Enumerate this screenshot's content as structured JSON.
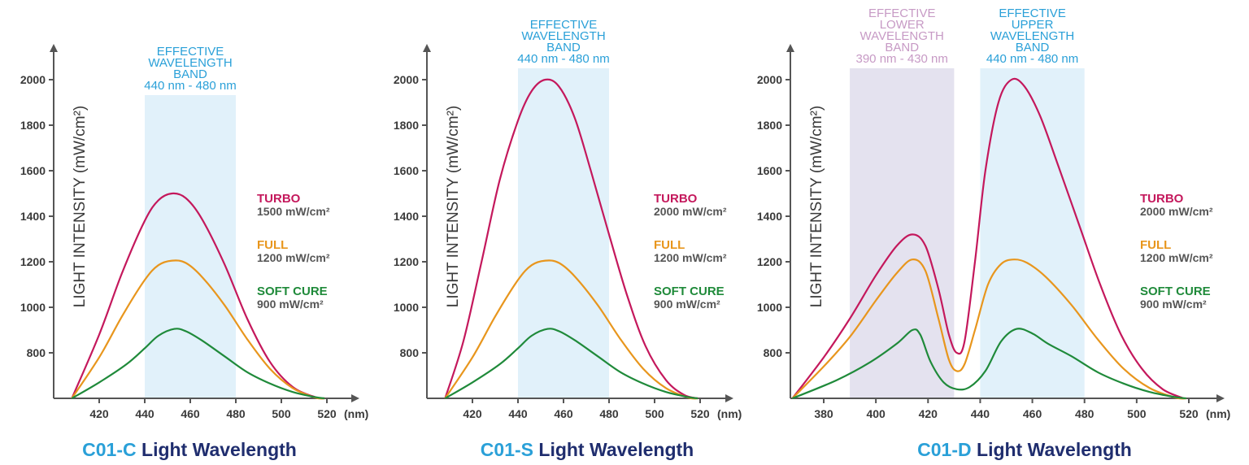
{
  "colors": {
    "axis": "#555555",
    "turbo": "#c4185c",
    "full": "#e8961d",
    "soft": "#1f8a3a",
    "band_blue_fill": "#e1f1fa",
    "band_blue_text": "#2aa0d8",
    "band_purple_fill": "#e4e2ef",
    "band_purple_text": "#c79ac5",
    "caption_model": "#2aa0d8",
    "caption_text": "#1f2d6e"
  },
  "chart_data": [
    {
      "type": "line",
      "model": "C01-C",
      "caption_rest": "Light Wavelength",
      "ylabel": "LIGHT INTENSITY (mW/cm²)",
      "unit_label": "(nm)",
      "x_ticks": [
        420,
        440,
        460,
        480,
        500,
        520
      ],
      "y_ticks": [
        800,
        1000,
        1200,
        1400,
        1600,
        1800,
        2000
      ],
      "xlim": [
        406,
        520
      ],
      "ylim": [
        600,
        2100
      ],
      "grid": false,
      "legend_position": "right",
      "bands": [
        {
          "x": [
            440,
            480
          ],
          "lines": [
            "EFFECTIVE",
            "WAVELENGTH",
            "BAND",
            "440 nm - 480 nm"
          ],
          "color": "blue"
        }
      ],
      "series": [
        {
          "name": "TURBO",
          "value_label": "1500 mW/cm²",
          "color": "turbo",
          "points": [
            [
              408,
              600
            ],
            [
              420,
              880
            ],
            [
              430,
              1150
            ],
            [
              440,
              1380
            ],
            [
              446,
              1470
            ],
            [
              452,
              1500
            ],
            [
              458,
              1480
            ],
            [
              465,
              1390
            ],
            [
              475,
              1190
            ],
            [
              485,
              950
            ],
            [
              495,
              760
            ],
            [
              505,
              650
            ],
            [
              515,
              605
            ],
            [
              519,
              600
            ]
          ]
        },
        {
          "name": "FULL",
          "value_label": "1200 mW/cm²",
          "color": "full",
          "points": [
            [
              408,
              600
            ],
            [
              420,
              780
            ],
            [
              430,
              960
            ],
            [
              440,
              1120
            ],
            [
              446,
              1185
            ],
            [
              452,
              1205
            ],
            [
              458,
              1195
            ],
            [
              465,
              1135
            ],
            [
              475,
              1010
            ],
            [
              485,
              860
            ],
            [
              495,
              730
            ],
            [
              505,
              645
            ],
            [
              515,
              603
            ],
            [
              519,
              600
            ]
          ]
        },
        {
          "name": "SOFT CURE",
          "value_label": "900 mW/cm²",
          "color": "soft",
          "points": [
            [
              408,
              600
            ],
            [
              420,
              670
            ],
            [
              432,
              750
            ],
            [
              440,
              820
            ],
            [
              446,
              875
            ],
            [
              453,
              905
            ],
            [
              458,
              895
            ],
            [
              465,
              855
            ],
            [
              475,
              785
            ],
            [
              485,
              715
            ],
            [
              495,
              665
            ],
            [
              505,
              628
            ],
            [
              515,
              605
            ],
            [
              519,
              600
            ]
          ]
        }
      ]
    },
    {
      "type": "line",
      "model": "C01-S",
      "caption_rest": "Light Wavelength",
      "ylabel": "LIGHT INTENSITY (mW/cm²)",
      "unit_label": "(nm)",
      "x_ticks": [
        420,
        440,
        460,
        480,
        500,
        520
      ],
      "y_ticks": [
        800,
        1000,
        1200,
        1400,
        1600,
        1800,
        2000
      ],
      "xlim": [
        406,
        520
      ],
      "ylim": [
        600,
        2100
      ],
      "grid": false,
      "legend_position": "right",
      "bands": [
        {
          "x": [
            440,
            480
          ],
          "lines": [
            "EFFECTIVE",
            "WAVELENGTH",
            "BAND",
            "440 nm - 480 nm"
          ],
          "color": "blue"
        }
      ],
      "series": [
        {
          "name": "TURBO",
          "value_label": "2000 mW/cm²",
          "color": "turbo",
          "points": [
            [
              408,
              600
            ],
            [
              416,
              850
            ],
            [
              424,
              1200
            ],
            [
              432,
              1560
            ],
            [
              440,
              1820
            ],
            [
              446,
              1950
            ],
            [
              452,
              2000
            ],
            [
              458,
              1970
            ],
            [
              465,
              1830
            ],
            [
              472,
              1600
            ],
            [
              480,
              1320
            ],
            [
              488,
              1050
            ],
            [
              496,
              830
            ],
            [
              505,
              680
            ],
            [
              513,
              615
            ],
            [
              519,
              600
            ]
          ]
        },
        {
          "name": "FULL",
          "value_label": "1200 mW/cm²",
          "color": "full",
          "points": [
            [
              408,
              600
            ],
            [
              420,
              780
            ],
            [
              430,
              960
            ],
            [
              440,
              1120
            ],
            [
              446,
              1185
            ],
            [
              452,
              1205
            ],
            [
              458,
              1195
            ],
            [
              465,
              1135
            ],
            [
              475,
              1010
            ],
            [
              485,
              860
            ],
            [
              495,
              730
            ],
            [
              505,
              645
            ],
            [
              515,
              603
            ],
            [
              519,
              600
            ]
          ]
        },
        {
          "name": "SOFT CURE",
          "value_label": "900 mW/cm²",
          "color": "soft",
          "points": [
            [
              408,
              600
            ],
            [
              420,
              670
            ],
            [
              432,
              750
            ],
            [
              440,
              820
            ],
            [
              446,
              875
            ],
            [
              453,
              905
            ],
            [
              458,
              895
            ],
            [
              465,
              855
            ],
            [
              475,
              785
            ],
            [
              485,
              715
            ],
            [
              495,
              665
            ],
            [
              505,
              628
            ],
            [
              515,
              605
            ],
            [
              519,
              600
            ]
          ]
        }
      ]
    },
    {
      "type": "line",
      "model": "C01-D",
      "caption_rest": "Light Wavelength",
      "ylabel": "LIGHT INTENSITY (mW/cm²)",
      "unit_label": "(nm)",
      "x_ticks": [
        380,
        400,
        420,
        440,
        460,
        480,
        500,
        520
      ],
      "y_ticks": [
        800,
        1000,
        1200,
        1400,
        1600,
        1800,
        2000
      ],
      "xlim": [
        366,
        521
      ],
      "ylim": [
        600,
        2100
      ],
      "grid": false,
      "legend_position": "right",
      "bands": [
        {
          "x": [
            390,
            430
          ],
          "lines": [
            "EFFECTIVE",
            "LOWER",
            "WAVELENGTH",
            "BAND",
            "390 nm - 430 nm"
          ],
          "color": "purple"
        },
        {
          "x": [
            440,
            480
          ],
          "lines": [
            "EFFECTIVE",
            "UPPER",
            "WAVELENGTH",
            "BAND",
            "440 nm - 480 nm"
          ],
          "color": "blue"
        }
      ],
      "series": [
        {
          "name": "TURBO",
          "value_label": "2000 mW/cm²",
          "color": "turbo",
          "points": [
            [
              368,
              600
            ],
            [
              380,
              780
            ],
            [
              390,
              950
            ],
            [
              400,
              1140
            ],
            [
              408,
              1270
            ],
            [
              414,
              1320
            ],
            [
              419,
              1270
            ],
            [
              424,
              1080
            ],
            [
              428,
              880
            ],
            [
              431,
              800
            ],
            [
              434,
              850
            ],
            [
              438,
              1200
            ],
            [
              442,
              1600
            ],
            [
              447,
              1900
            ],
            [
              452,
              2000
            ],
            [
              457,
              1970
            ],
            [
              463,
              1840
            ],
            [
              470,
              1620
            ],
            [
              478,
              1360
            ],
            [
              486,
              1100
            ],
            [
              494,
              880
            ],
            [
              502,
              730
            ],
            [
              510,
              640
            ],
            [
              518,
              600
            ]
          ]
        },
        {
          "name": "FULL",
          "value_label": "1200 mW/cm²",
          "color": "full",
          "points": [
            [
              368,
              600
            ],
            [
              380,
              740
            ],
            [
              390,
              870
            ],
            [
              400,
              1030
            ],
            [
              408,
              1150
            ],
            [
              414,
              1210
            ],
            [
              419,
              1160
            ],
            [
              424,
              950
            ],
            [
              428,
              770
            ],
            [
              431,
              720
            ],
            [
              434,
              750
            ],
            [
              438,
              900
            ],
            [
              443,
              1100
            ],
            [
              448,
              1190
            ],
            [
              453,
              1210
            ],
            [
              458,
              1195
            ],
            [
              465,
              1135
            ],
            [
              475,
              1010
            ],
            [
              485,
              860
            ],
            [
              495,
              730
            ],
            [
              505,
              645
            ],
            [
              515,
              603
            ],
            [
              519,
              600
            ]
          ]
        },
        {
          "name": "SOFT CURE",
          "value_label": "900 mW/cm²",
          "color": "soft",
          "points": [
            [
              368,
              600
            ],
            [
              385,
              680
            ],
            [
              398,
              760
            ],
            [
              408,
              840
            ],
            [
              414,
              900
            ],
            [
              417,
              880
            ],
            [
              421,
              760
            ],
            [
              426,
              670
            ],
            [
              431,
              640
            ],
            [
              436,
              650
            ],
            [
              442,
              720
            ],
            [
              448,
              850
            ],
            [
              454,
              905
            ],
            [
              460,
              885
            ],
            [
              466,
              840
            ],
            [
              475,
              785
            ],
            [
              485,
              715
            ],
            [
              495,
              665
            ],
            [
              505,
              628
            ],
            [
              515,
              605
            ],
            [
              519,
              600
            ]
          ]
        }
      ]
    }
  ]
}
